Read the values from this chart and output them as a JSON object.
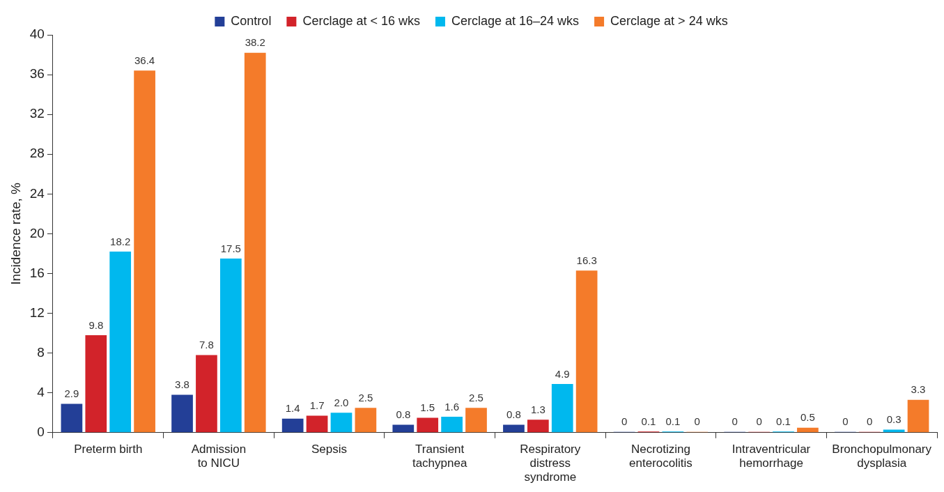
{
  "chart_data": {
    "type": "bar",
    "ylabel": "Incidence rate, %",
    "categories": [
      "Preterm birth",
      "Admission\nto NICU",
      "Sepsis",
      "Transient\ntachypnea",
      "Respiratory\ndistress\nsyndrome",
      "Necrotizing\nenterocolitis",
      "Intraventricular\nhemorrhage",
      "Bronchopulmonary\ndysplasia"
    ],
    "series": [
      {
        "name": "Control",
        "color": "#233f97",
        "values": [
          2.9,
          3.8,
          1.4,
          0.8,
          0.8,
          0,
          0,
          0
        ],
        "value_labels": [
          "2.9",
          "3.8",
          "1.4",
          "0.8",
          "0.8",
          "0",
          "0",
          "0"
        ]
      },
      {
        "name": "Cerclage at < 16 wks",
        "color": "#d2232a",
        "values": [
          9.8,
          7.8,
          1.7,
          1.5,
          1.3,
          0.1,
          0,
          0
        ],
        "value_labels": [
          "9.8",
          "7.8",
          "1.7",
          "1.5",
          "1.3",
          "0.1",
          "0",
          "0"
        ]
      },
      {
        "name": "Cerclage at 16–24 wks",
        "color": "#00b8ee",
        "values": [
          18.2,
          17.5,
          2.0,
          1.6,
          4.9,
          0.1,
          0.1,
          0.3
        ],
        "value_labels": [
          "18.2",
          "17.5",
          "2.0",
          "1.6",
          "4.9",
          "0.1",
          "0.1",
          "0.3"
        ]
      },
      {
        "name": "Cerclage at > 24 wks",
        "color": "#f47b2a",
        "values": [
          36.4,
          38.2,
          2.5,
          2.5,
          16.3,
          0,
          0.5,
          3.3
        ],
        "value_labels": [
          "36.4",
          "38.2",
          "2.5",
          "2.5",
          "16.3",
          "0",
          "0.5",
          "3.3"
        ]
      }
    ],
    "ylim": [
      0,
      40
    ],
    "yticks": [
      0,
      4,
      8,
      12,
      16,
      20,
      24,
      28,
      32,
      36,
      40
    ],
    "grid": false,
    "legend": "top"
  }
}
